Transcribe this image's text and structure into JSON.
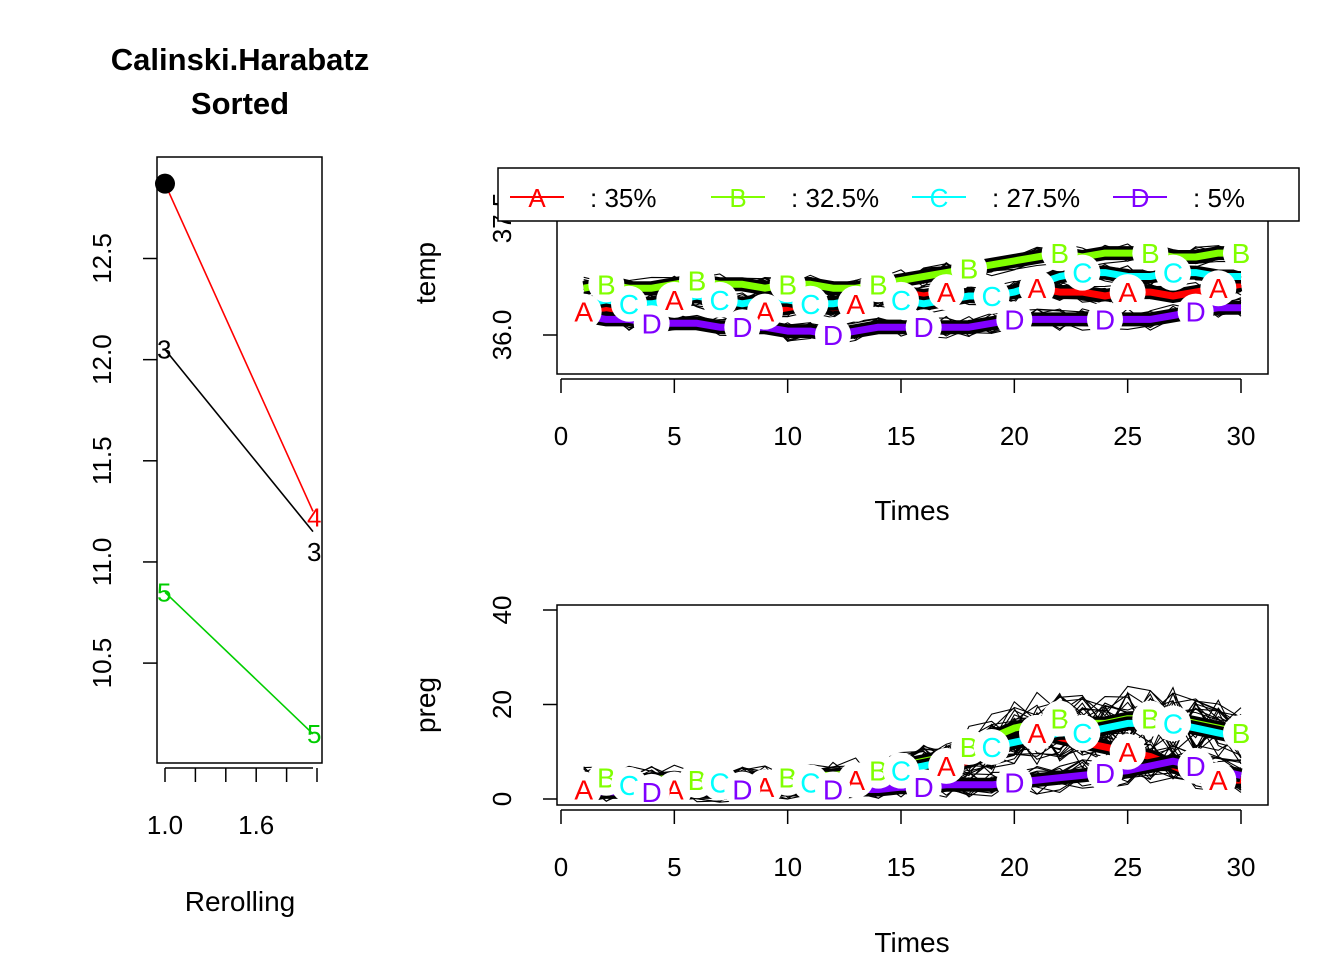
{
  "chart_data": [
    {
      "type": "line",
      "title": "Calinski.Harabatz",
      "subtitle": "Sorted",
      "xlabel": "Rerolling",
      "ylabel": "",
      "xlim": [
        1,
        2
      ],
      "ylim": [
        10.0,
        13.0
      ],
      "x_ticks": [
        1.0,
        1.6
      ],
      "y_ticks": [
        "10.5",
        "11.0",
        "11.5",
        "12.0",
        "12.5"
      ],
      "series": [
        {
          "label": "4",
          "color": "#ff0000",
          "points": [
            [
              1,
              12.87
            ],
            [
              2,
              11.25
            ]
          ]
        },
        {
          "label": "3",
          "color": "#000000",
          "points": [
            [
              1,
              12.05
            ],
            [
              2,
              11.15
            ]
          ]
        },
        {
          "label": "5",
          "color": "#00cd00",
          "points": [
            [
              1,
              10.85
            ],
            [
              2,
              10.15
            ]
          ]
        }
      ],
      "marker": {
        "x": 1,
        "y": 12.87
      },
      "endpoint_labels": [
        {
          "text": "3",
          "x": 1,
          "y": 12.05,
          "color": "#000000"
        },
        {
          "text": "5",
          "x": 1,
          "y": 10.85,
          "color": "#00cd00"
        },
        {
          "text": "4",
          "x": 2,
          "y": 11.22,
          "color": "#ff0000"
        },
        {
          "text": "3",
          "x": 2,
          "y": 11.05,
          "color": "#000000"
        },
        {
          "text": "5",
          "x": 2,
          "y": 10.15,
          "color": "#00cd00"
        }
      ]
    },
    {
      "type": "line",
      "xlabel": "Times",
      "ylabel": "temp",
      "xlim": [
        0,
        30
      ],
      "ylim": [
        35.6,
        37.6
      ],
      "x_ticks": [
        "0",
        "5",
        "10",
        "15",
        "20",
        "25",
        "30"
      ],
      "y_ticks": [
        "36.0",
        "37.5"
      ],
      "legend": [
        {
          "label": "A",
          "pct": ":   35%",
          "color": "#ff0000"
        },
        {
          "label": "B",
          "pct": ": 32.5%",
          "color": "#80ff00"
        },
        {
          "label": "C",
          "pct": ": 27.5%",
          "color": "#00ffff"
        },
        {
          "label": "D",
          "pct": ":    5%",
          "color": "#8000ff"
        }
      ],
      "series": [
        {
          "name": "A",
          "color": "#ff0000",
          "x": [
            1,
            2,
            3,
            4,
            5,
            6,
            7,
            8,
            9,
            10,
            11,
            12,
            13,
            14,
            15,
            16,
            17,
            18,
            19,
            20,
            21,
            22,
            23,
            24,
            25,
            26,
            27,
            28,
            29,
            30
          ],
          "y": [
            36.3,
            36.35,
            36.3,
            36.4,
            36.45,
            36.5,
            36.4,
            36.35,
            36.3,
            36.35,
            36.4,
            36.35,
            36.4,
            36.5,
            36.55,
            36.5,
            36.55,
            36.5,
            36.5,
            36.55,
            36.6,
            36.55,
            36.55,
            36.5,
            36.55,
            36.55,
            36.5,
            36.55,
            36.6,
            36.65
          ]
        },
        {
          "name": "B",
          "color": "#80ff00",
          "x": [
            1,
            2,
            3,
            4,
            5,
            6,
            7,
            8,
            9,
            10,
            11,
            12,
            13,
            14,
            15,
            16,
            17,
            18,
            19,
            20,
            21,
            22,
            23,
            24,
            25,
            26,
            27,
            28,
            29,
            30
          ],
          "y": [
            36.6,
            36.65,
            36.6,
            36.6,
            36.65,
            36.7,
            36.65,
            36.65,
            36.6,
            36.65,
            36.65,
            36.6,
            36.6,
            36.65,
            36.7,
            36.75,
            36.8,
            36.85,
            36.9,
            36.95,
            37.0,
            37.05,
            37.0,
            37.05,
            37.05,
            37.05,
            37.0,
            37.0,
            37.05,
            37.05
          ]
        },
        {
          "name": "C",
          "color": "#00ffff",
          "x": [
            1,
            2,
            3,
            4,
            5,
            6,
            7,
            8,
            9,
            10,
            11,
            12,
            13,
            14,
            15,
            16,
            17,
            18,
            19,
            20,
            21,
            22,
            23,
            24,
            25,
            26,
            27,
            28,
            29,
            30
          ],
          "y": [
            36.4,
            36.45,
            36.4,
            36.4,
            36.45,
            36.5,
            36.45,
            36.4,
            36.45,
            36.45,
            36.4,
            36.4,
            36.45,
            36.5,
            36.45,
            36.4,
            36.45,
            36.5,
            36.5,
            36.55,
            36.65,
            36.75,
            36.8,
            36.8,
            36.75,
            36.75,
            36.8,
            36.8,
            36.75,
            36.75
          ]
        },
        {
          "name": "D",
          "color": "#8000ff",
          "x": [
            1,
            2,
            3,
            4,
            5,
            6,
            7,
            8,
            9,
            10,
            11,
            12,
            13,
            14,
            15,
            16,
            17,
            18,
            19,
            20,
            21,
            22,
            23,
            24,
            25,
            26,
            27,
            28,
            29,
            30
          ],
          "y": [
            36.25,
            36.2,
            36.2,
            36.15,
            36.15,
            36.15,
            36.1,
            36.1,
            36.1,
            36.05,
            36.05,
            36.0,
            36.05,
            36.1,
            36.1,
            36.1,
            36.1,
            36.1,
            36.15,
            36.2,
            36.2,
            36.2,
            36.2,
            36.2,
            36.2,
            36.2,
            36.25,
            36.3,
            36.35,
            36.35
          ]
        }
      ]
    },
    {
      "type": "line",
      "xlabel": "Times",
      "ylabel": "preg",
      "xlim": [
        0,
        30
      ],
      "ylim": [
        -2,
        41
      ],
      "x_ticks": [
        "0",
        "5",
        "10",
        "15",
        "20",
        "25",
        "30"
      ],
      "y_ticks": [
        "0",
        "20",
        "40"
      ],
      "series": [
        {
          "name": "A",
          "color": "#ff0000",
          "x": [
            1,
            2,
            3,
            4,
            5,
            6,
            7,
            8,
            9,
            10,
            11,
            12,
            13,
            14,
            15,
            16,
            17,
            18,
            19,
            20,
            21,
            22,
            23,
            24,
            25,
            26,
            27,
            28,
            29,
            30
          ],
          "y": [
            2,
            2.5,
            3,
            2.5,
            2,
            2,
            2.5,
            3,
            2.5,
            2.5,
            3,
            3.5,
            4,
            4.5,
            5,
            6,
            7,
            8,
            10,
            12,
            14,
            13,
            12,
            11,
            10,
            9,
            7,
            5,
            4,
            4
          ]
        },
        {
          "name": "B",
          "color": "#80ff00",
          "x": [
            1,
            2,
            3,
            4,
            5,
            6,
            7,
            8,
            9,
            10,
            11,
            12,
            13,
            14,
            15,
            16,
            17,
            18,
            19,
            20,
            21,
            22,
            23,
            24,
            25,
            26,
            27,
            28,
            29,
            30
          ],
          "y": [
            4,
            4.5,
            4,
            4,
            4.5,
            4,
            4,
            4.5,
            4,
            4.5,
            5,
            5,
            5.5,
            6,
            7,
            8,
            9,
            11,
            13,
            15,
            16,
            17,
            16,
            16,
            17,
            17,
            17,
            16,
            15,
            14
          ]
        },
        {
          "name": "C",
          "color": "#00ffff",
          "x": [
            1,
            2,
            3,
            4,
            5,
            6,
            7,
            8,
            9,
            10,
            11,
            12,
            13,
            14,
            15,
            16,
            17,
            18,
            19,
            20,
            21,
            22,
            23,
            24,
            25,
            26,
            27,
            28,
            29,
            30
          ],
          "y": [
            3,
            3.5,
            3,
            3.5,
            3,
            3,
            3.5,
            3,
            3.5,
            3,
            3.5,
            4,
            4.5,
            5,
            6,
            7,
            8,
            9,
            11,
            12,
            13,
            14,
            14,
            15,
            16,
            16,
            16,
            15,
            14,
            13
          ]
        },
        {
          "name": "D",
          "color": "#8000ff",
          "x": [
            1,
            2,
            3,
            4,
            5,
            6,
            7,
            8,
            9,
            10,
            11,
            12,
            13,
            14,
            15,
            16,
            17,
            18,
            19,
            20,
            21,
            22,
            23,
            24,
            25,
            26,
            27,
            28,
            29,
            30
          ],
          "y": [
            1.5,
            1.5,
            1.5,
            1.5,
            1.5,
            1.5,
            1.5,
            2,
            2,
            2,
            2,
            2,
            2,
            2,
            2.5,
            2.5,
            3,
            3,
            3,
            3.5,
            4,
            4.5,
            5,
            5.5,
            6,
            7,
            8,
            7,
            6,
            5
          ]
        }
      ]
    }
  ]
}
